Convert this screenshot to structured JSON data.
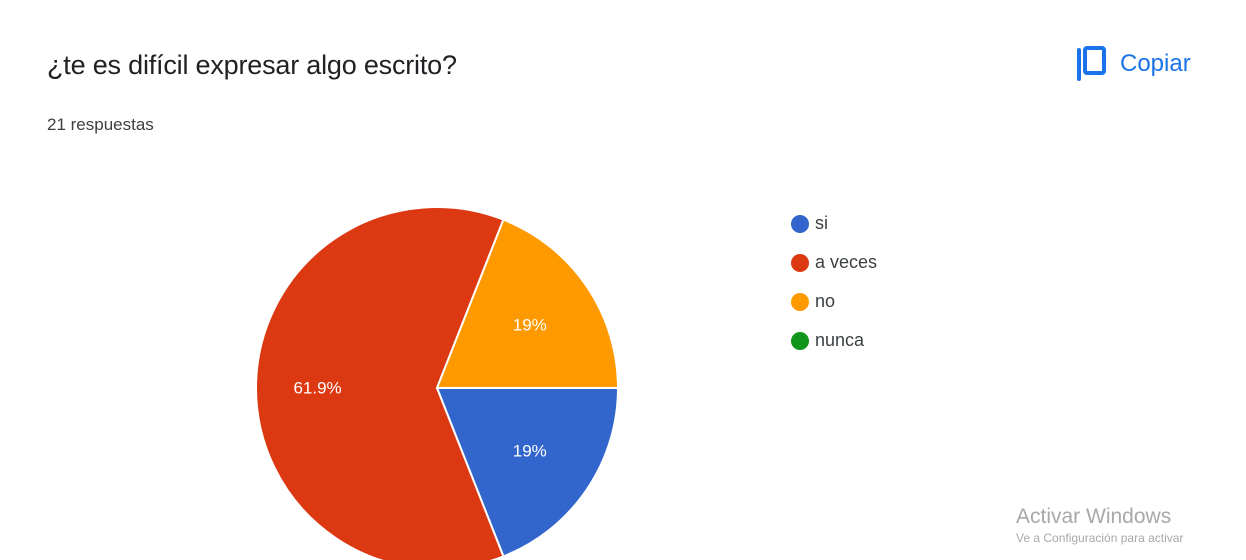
{
  "header": {
    "title": "¿te es difícil expresar algo escrito?",
    "responses": "21 respuestas",
    "copy_label": "Copiar",
    "copy_icon": "copy-icon",
    "accent_color": "#1a73e8"
  },
  "chart_data": {
    "type": "pie",
    "title": "¿te es difícil expresar algo escrito?",
    "total_responses": 21,
    "legend_position": "right",
    "slices": [
      {
        "label": "si",
        "value": 19.0,
        "display": "19%",
        "color": "#3366cc"
      },
      {
        "label": "a veces",
        "value": 61.9,
        "display": "61.9%",
        "color": "#dc3912"
      },
      {
        "label": "no",
        "value": 19.0,
        "display": "19%",
        "color": "#ff9900"
      },
      {
        "label": "nunca",
        "value": 0,
        "display": "",
        "color": "#109618"
      }
    ]
  },
  "watermark": {
    "title": "Activar Windows",
    "subtitle": "Ve a Configuración para activar"
  }
}
